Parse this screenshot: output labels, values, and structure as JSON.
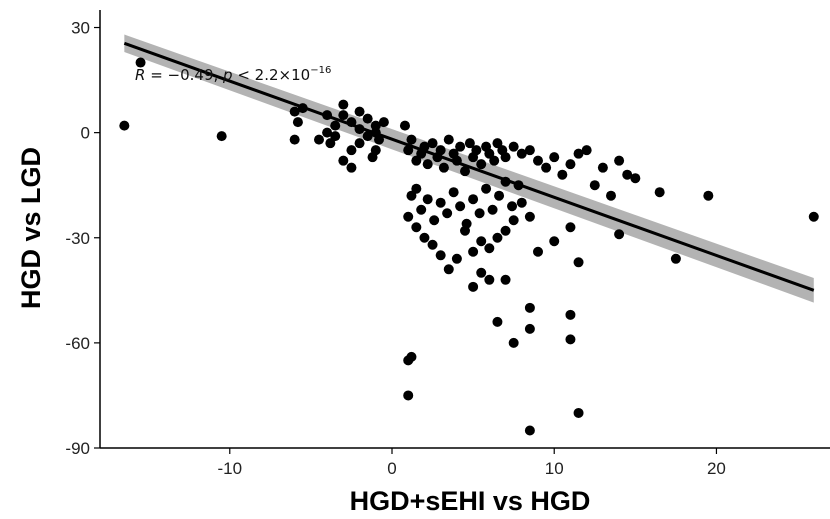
{
  "chart_data": {
    "type": "scatter",
    "xlabel": "HGD+sEHI vs HGD",
    "ylabel": "HGD vs LGD",
    "xlim": [
      -18,
      27
    ],
    "ylim": [
      -90,
      35
    ],
    "x_ticks": [
      -10,
      0,
      10,
      20
    ],
    "x_tick_labels": [
      "-10",
      "0",
      "10",
      "20"
    ],
    "y_ticks": [
      30,
      0,
      -30,
      -60,
      -90
    ],
    "y_tick_labels": [
      "30",
      "0",
      "-30",
      "-60",
      "-90"
    ],
    "grid": false,
    "annotation": {
      "prefix": "R",
      "main": " = −0.49, ",
      "p": "p",
      "rest": " < 2.2×10",
      "sup": "−16"
    },
    "regression": {
      "x_start": -16.5,
      "y_start": 25.5,
      "x_end": 26,
      "y_end": -45,
      "ci_start": 2.5,
      "ci_end": 3.5,
      "line_color": "#000000",
      "band_color": "#999999"
    },
    "point_color": "#000000",
    "points": [
      [
        -16.5,
        2
      ],
      [
        -15.5,
        20
      ],
      [
        -10.5,
        -1
      ],
      [
        -6,
        6
      ],
      [
        -5.5,
        7
      ],
      [
        -5.8,
        3
      ],
      [
        -6,
        -2
      ],
      [
        -4,
        5
      ],
      [
        -3.5,
        2
      ],
      [
        -3,
        8
      ],
      [
        -3,
        5
      ],
      [
        -2.5,
        3
      ],
      [
        -2,
        6
      ],
      [
        -2,
        1
      ],
      [
        -1.5,
        4
      ],
      [
        -1,
        2
      ],
      [
        -1,
        0
      ],
      [
        -0.5,
        3
      ],
      [
        -1.5,
        -1
      ],
      [
        -2,
        -3
      ],
      [
        -2.5,
        -5
      ],
      [
        -3,
        -8
      ],
      [
        -2.5,
        -10
      ],
      [
        -1,
        -5
      ],
      [
        -1.2,
        -7
      ],
      [
        -3.5,
        -1
      ],
      [
        -4,
        0
      ],
      [
        -4.5,
        -2
      ],
      [
        -3.8,
        -3
      ],
      [
        -0.8,
        -2
      ],
      [
        0.8,
        2
      ],
      [
        1,
        -5
      ],
      [
        1.2,
        -2
      ],
      [
        1.5,
        -8
      ],
      [
        1.8,
        -6
      ],
      [
        2,
        -4
      ],
      [
        2.2,
        -9
      ],
      [
        2.5,
        -3
      ],
      [
        2.8,
        -7
      ],
      [
        3,
        -5
      ],
      [
        3.2,
        -10
      ],
      [
        3.5,
        -2
      ],
      [
        3.8,
        -6
      ],
      [
        4,
        -8
      ],
      [
        4.2,
        -4
      ],
      [
        4.5,
        -11
      ],
      [
        4.8,
        -3
      ],
      [
        5,
        -7
      ],
      [
        5.2,
        -5
      ],
      [
        5.5,
        -9
      ],
      [
        5.8,
        -4
      ],
      [
        6,
        -6
      ],
      [
        6.3,
        -8
      ],
      [
        6.5,
        -3
      ],
      [
        6.8,
        -5
      ],
      [
        7,
        -7
      ],
      [
        7.5,
        -4
      ],
      [
        8,
        -6
      ],
      [
        8.5,
        -5
      ],
      [
        9,
        -8
      ],
      [
        9.5,
        -10
      ],
      [
        10,
        -7
      ],
      [
        10.5,
        -12
      ],
      [
        11,
        -9
      ],
      [
        11.5,
        -6
      ],
      [
        12,
        -5
      ],
      [
        12.5,
        -15
      ],
      [
        13,
        -10
      ],
      [
        13.5,
        -18
      ],
      [
        14,
        -8
      ],
      [
        14.5,
        -12
      ],
      [
        15,
        -13
      ],
      [
        16.5,
        -17
      ],
      [
        19.5,
        -18
      ],
      [
        26,
        -24
      ],
      [
        17.5,
        -36
      ],
      [
        14,
        -29
      ],
      [
        11.5,
        -37
      ],
      [
        11,
        -27
      ],
      [
        10,
        -31
      ],
      [
        9,
        -34
      ],
      [
        8.5,
        -24
      ],
      [
        8,
        -20
      ],
      [
        7.5,
        -25
      ],
      [
        7,
        -28
      ],
      [
        6.5,
        -30
      ],
      [
        6,
        -33
      ],
      [
        5.5,
        -31
      ],
      [
        5,
        -34
      ],
      [
        4.5,
        -28
      ],
      [
        4,
        -36
      ],
      [
        3.5,
        -39
      ],
      [
        3,
        -35
      ],
      [
        2.5,
        -32
      ],
      [
        2,
        -30
      ],
      [
        1.5,
        -27
      ],
      [
        1,
        -24
      ],
      [
        1.2,
        -18
      ],
      [
        1.5,
        -16
      ],
      [
        1.8,
        -22
      ],
      [
        2.2,
        -19
      ],
      [
        2.6,
        -25
      ],
      [
        3,
        -20
      ],
      [
        3.4,
        -23
      ],
      [
        3.8,
        -17
      ],
      [
        4.2,
        -21
      ],
      [
        4.6,
        -26
      ],
      [
        5,
        -19
      ],
      [
        5.4,
        -23
      ],
      [
        5.8,
        -16
      ],
      [
        6.2,
        -22
      ],
      [
        6.6,
        -18
      ],
      [
        7,
        -14
      ],
      [
        7.4,
        -21
      ],
      [
        7.8,
        -15
      ],
      [
        5,
        -44
      ],
      [
        5.5,
        -40
      ],
      [
        6,
        -42
      ],
      [
        6.5,
        -54
      ],
      [
        7,
        -42
      ],
      [
        7.5,
        -60
      ],
      [
        8.5,
        -50
      ],
      [
        8.5,
        -56
      ],
      [
        11,
        -52
      ],
      [
        11,
        -59
      ],
      [
        1,
        -65
      ],
      [
        1.2,
        -64
      ],
      [
        1,
        -75
      ],
      [
        8.5,
        -85
      ],
      [
        11.5,
        -80
      ]
    ]
  }
}
